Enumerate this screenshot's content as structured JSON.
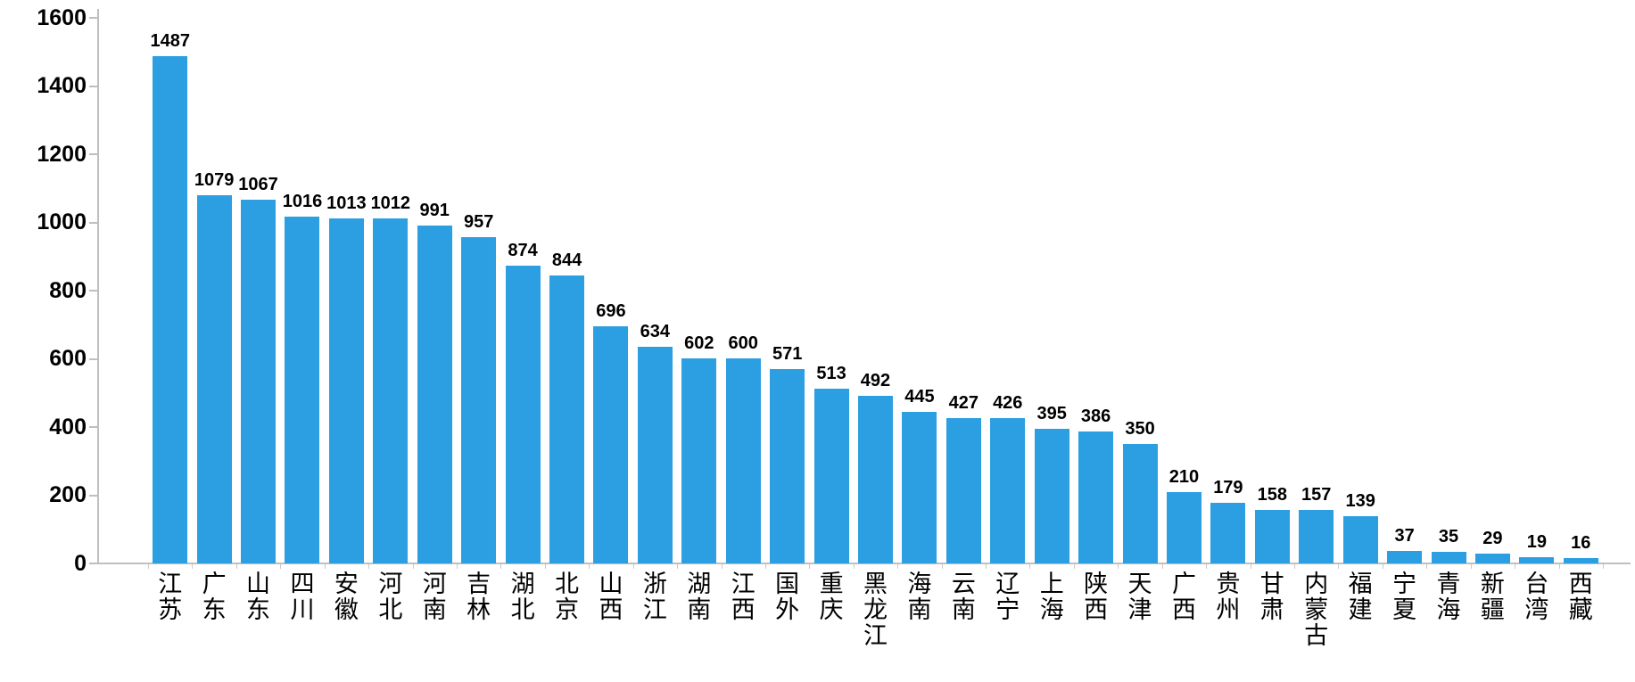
{
  "chart_data": {
    "type": "bar",
    "title": "",
    "xlabel": "",
    "ylabel": "",
    "categories": [
      "江苏",
      "广东",
      "山东",
      "四川",
      "安徽",
      "河北",
      "河南",
      "吉林",
      "湖北",
      "北京",
      "山西",
      "浙江",
      "湖南",
      "江西",
      "国外",
      "重庆",
      "黑龙江",
      "海南",
      "云南",
      "辽宁",
      "上海",
      "陕西",
      "天津",
      "广西",
      "贵州",
      "甘肃",
      "内蒙古",
      "福建",
      "宁夏",
      "青海",
      "新疆",
      "台湾",
      "西藏"
    ],
    "values": [
      1487,
      1079,
      1067,
      1016,
      1013,
      1012,
      991,
      957,
      874,
      844,
      696,
      634,
      602,
      600,
      571,
      513,
      492,
      445,
      427,
      426,
      395,
      386,
      350,
      210,
      179,
      158,
      157,
      139,
      37,
      35,
      29,
      19,
      16
    ],
    "value_labels_shown": true,
    "ylim": [
      0,
      1600
    ],
    "yticks": [
      0,
      200,
      400,
      600,
      800,
      1000,
      1200,
      1400,
      1600
    ],
    "grid": false,
    "legend": null,
    "colors": {
      "bar": "#2b9fe2",
      "axis": "#bfbfbf",
      "text": "#000000"
    }
  }
}
